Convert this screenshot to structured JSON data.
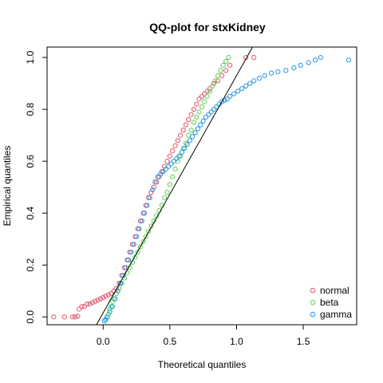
{
  "chart_data": {
    "type": "scatter",
    "title": "QQ-plot for stxKidney",
    "xlabel": "Theoretical quantiles",
    "ylabel": "Empirical quantiles",
    "xlim": [
      -0.42,
      1.9
    ],
    "ylim": [
      -0.03,
      1.04
    ],
    "xticks": [
      0.0,
      0.5,
      1.0,
      1.5
    ],
    "xtick_labels": [
      "0.0",
      "0.5",
      "1.0",
      "1.5"
    ],
    "yticks": [
      0.0,
      0.2,
      0.4,
      0.6,
      0.8,
      1.0
    ],
    "ytick_labels": [
      "0.0",
      "0.2",
      "0.4",
      "0.6",
      "0.8",
      "1.0"
    ],
    "grid": false,
    "legend_position": "bottom-right",
    "reference_line": {
      "x": [
        -0.05,
        1.12
      ],
      "y": [
        -0.05,
        1.12
      ],
      "color": "#000000"
    },
    "marker": "open-circle",
    "series": [
      {
        "name": "normal",
        "color": "#DF536B",
        "points": [
          [
            -0.37,
            0.0
          ],
          [
            -0.29,
            0.0
          ],
          [
            -0.23,
            0.0
          ],
          [
            -0.21,
            0.0
          ],
          [
            -0.19,
            0.003
          ],
          [
            -0.18,
            0.03
          ],
          [
            -0.16,
            0.04
          ],
          [
            -0.14,
            0.04
          ],
          [
            -0.12,
            0.05
          ],
          [
            -0.1,
            0.05
          ],
          [
            -0.08,
            0.055
          ],
          [
            -0.06,
            0.06
          ],
          [
            -0.04,
            0.065
          ],
          [
            -0.02,
            0.07
          ],
          [
            0.0,
            0.075
          ],
          [
            0.02,
            0.08
          ],
          [
            0.04,
            0.085
          ],
          [
            0.06,
            0.09
          ],
          [
            0.08,
            0.1
          ],
          [
            0.1,
            0.11
          ],
          [
            0.12,
            0.13
          ],
          [
            0.14,
            0.16
          ],
          [
            0.16,
            0.19
          ],
          [
            0.18,
            0.22
          ],
          [
            0.2,
            0.25
          ],
          [
            0.22,
            0.28
          ],
          [
            0.24,
            0.31
          ],
          [
            0.26,
            0.34
          ],
          [
            0.28,
            0.37
          ],
          [
            0.3,
            0.4
          ],
          [
            0.32,
            0.43
          ],
          [
            0.34,
            0.46
          ],
          [
            0.36,
            0.48
          ],
          [
            0.38,
            0.5
          ],
          [
            0.4,
            0.52
          ],
          [
            0.42,
            0.54
          ],
          [
            0.44,
            0.56
          ],
          [
            0.46,
            0.58
          ],
          [
            0.48,
            0.6
          ],
          [
            0.5,
            0.62
          ],
          [
            0.52,
            0.64
          ],
          [
            0.54,
            0.66
          ],
          [
            0.56,
            0.68
          ],
          [
            0.58,
            0.7
          ],
          [
            0.6,
            0.72
          ],
          [
            0.62,
            0.74
          ],
          [
            0.64,
            0.76
          ],
          [
            0.66,
            0.78
          ],
          [
            0.68,
            0.8
          ],
          [
            0.7,
            0.82
          ],
          [
            0.72,
            0.84
          ],
          [
            0.74,
            0.85
          ],
          [
            0.76,
            0.86
          ],
          [
            0.78,
            0.87
          ],
          [
            0.8,
            0.88
          ],
          [
            0.83,
            0.9
          ],
          [
            0.86,
            0.91
          ],
          [
            0.89,
            0.93
          ],
          [
            0.92,
            0.95
          ],
          [
            0.95,
            0.97
          ],
          [
            1.07,
            1.0
          ],
          [
            1.13,
            1.0
          ]
        ]
      },
      {
        "name": "beta",
        "color": "#61D04F",
        "points": [
          [
            0.02,
            -0.01
          ],
          [
            0.03,
            0.0
          ],
          [
            0.04,
            0.01
          ],
          [
            0.05,
            0.03
          ],
          [
            0.06,
            0.04
          ],
          [
            0.07,
            0.06
          ],
          [
            0.08,
            0.07
          ],
          [
            0.1,
            0.09
          ],
          [
            0.12,
            0.11
          ],
          [
            0.14,
            0.13
          ],
          [
            0.16,
            0.15
          ],
          [
            0.18,
            0.17
          ],
          [
            0.2,
            0.19
          ],
          [
            0.22,
            0.21
          ],
          [
            0.24,
            0.23
          ],
          [
            0.26,
            0.25
          ],
          [
            0.28,
            0.27
          ],
          [
            0.3,
            0.29
          ],
          [
            0.32,
            0.31
          ],
          [
            0.34,
            0.33
          ],
          [
            0.36,
            0.35
          ],
          [
            0.38,
            0.37
          ],
          [
            0.4,
            0.39
          ],
          [
            0.42,
            0.41
          ],
          [
            0.44,
            0.43
          ],
          [
            0.46,
            0.46
          ],
          [
            0.48,
            0.48
          ],
          [
            0.5,
            0.51
          ],
          [
            0.52,
            0.54
          ],
          [
            0.54,
            0.57
          ],
          [
            0.56,
            0.6
          ],
          [
            0.58,
            0.62
          ],
          [
            0.6,
            0.65
          ],
          [
            0.62,
            0.67
          ],
          [
            0.64,
            0.7
          ],
          [
            0.66,
            0.72
          ],
          [
            0.68,
            0.75
          ],
          [
            0.7,
            0.77
          ],
          [
            0.72,
            0.79
          ],
          [
            0.74,
            0.81
          ],
          [
            0.76,
            0.83
          ],
          [
            0.78,
            0.85
          ],
          [
            0.8,
            0.87
          ],
          [
            0.82,
            0.89
          ],
          [
            0.84,
            0.91
          ],
          [
            0.86,
            0.93
          ],
          [
            0.88,
            0.95
          ],
          [
            0.9,
            0.97
          ],
          [
            0.92,
            0.985
          ],
          [
            0.94,
            1.0
          ]
        ]
      },
      {
        "name": "gamma",
        "color": "#2297E6",
        "points": [
          [
            0.01,
            -0.015
          ],
          [
            0.02,
            -0.01
          ],
          [
            0.03,
            0.0
          ],
          [
            0.05,
            0.02
          ],
          [
            0.07,
            0.04
          ],
          [
            0.09,
            0.07
          ],
          [
            0.11,
            0.1
          ],
          [
            0.13,
            0.13
          ],
          [
            0.15,
            0.16
          ],
          [
            0.17,
            0.19
          ],
          [
            0.19,
            0.22
          ],
          [
            0.21,
            0.25
          ],
          [
            0.23,
            0.28
          ],
          [
            0.25,
            0.31
          ],
          [
            0.27,
            0.34
          ],
          [
            0.29,
            0.37
          ],
          [
            0.31,
            0.4
          ],
          [
            0.33,
            0.43
          ],
          [
            0.35,
            0.46
          ],
          [
            0.37,
            0.49
          ],
          [
            0.39,
            0.52
          ],
          [
            0.41,
            0.54
          ],
          [
            0.43,
            0.55
          ],
          [
            0.45,
            0.56
          ],
          [
            0.47,
            0.57
          ],
          [
            0.49,
            0.58
          ],
          [
            0.51,
            0.59
          ],
          [
            0.53,
            0.6
          ],
          [
            0.55,
            0.61
          ],
          [
            0.57,
            0.62
          ],
          [
            0.59,
            0.635
          ],
          [
            0.61,
            0.65
          ],
          [
            0.63,
            0.665
          ],
          [
            0.65,
            0.68
          ],
          [
            0.67,
            0.695
          ],
          [
            0.69,
            0.71
          ],
          [
            0.71,
            0.725
          ],
          [
            0.73,
            0.74
          ],
          [
            0.75,
            0.755
          ],
          [
            0.77,
            0.77
          ],
          [
            0.79,
            0.78
          ],
          [
            0.81,
            0.79
          ],
          [
            0.83,
            0.8
          ],
          [
            0.85,
            0.81
          ],
          [
            0.87,
            0.82
          ],
          [
            0.89,
            0.83
          ],
          [
            0.91,
            0.835
          ],
          [
            0.93,
            0.84
          ],
          [
            0.95,
            0.85
          ],
          [
            0.98,
            0.86
          ],
          [
            1.01,
            0.87
          ],
          [
            1.04,
            0.88
          ],
          [
            1.07,
            0.89
          ],
          [
            1.1,
            0.9
          ],
          [
            1.13,
            0.91
          ],
          [
            1.17,
            0.92
          ],
          [
            1.21,
            0.93
          ],
          [
            1.26,
            0.94
          ],
          [
            1.31,
            0.945
          ],
          [
            1.37,
            0.95
          ],
          [
            1.43,
            0.96
          ],
          [
            1.48,
            0.97
          ],
          [
            1.54,
            0.98
          ],
          [
            1.59,
            0.99
          ],
          [
            1.63,
            1.0
          ],
          [
            1.84,
            0.99
          ]
        ]
      }
    ]
  }
}
